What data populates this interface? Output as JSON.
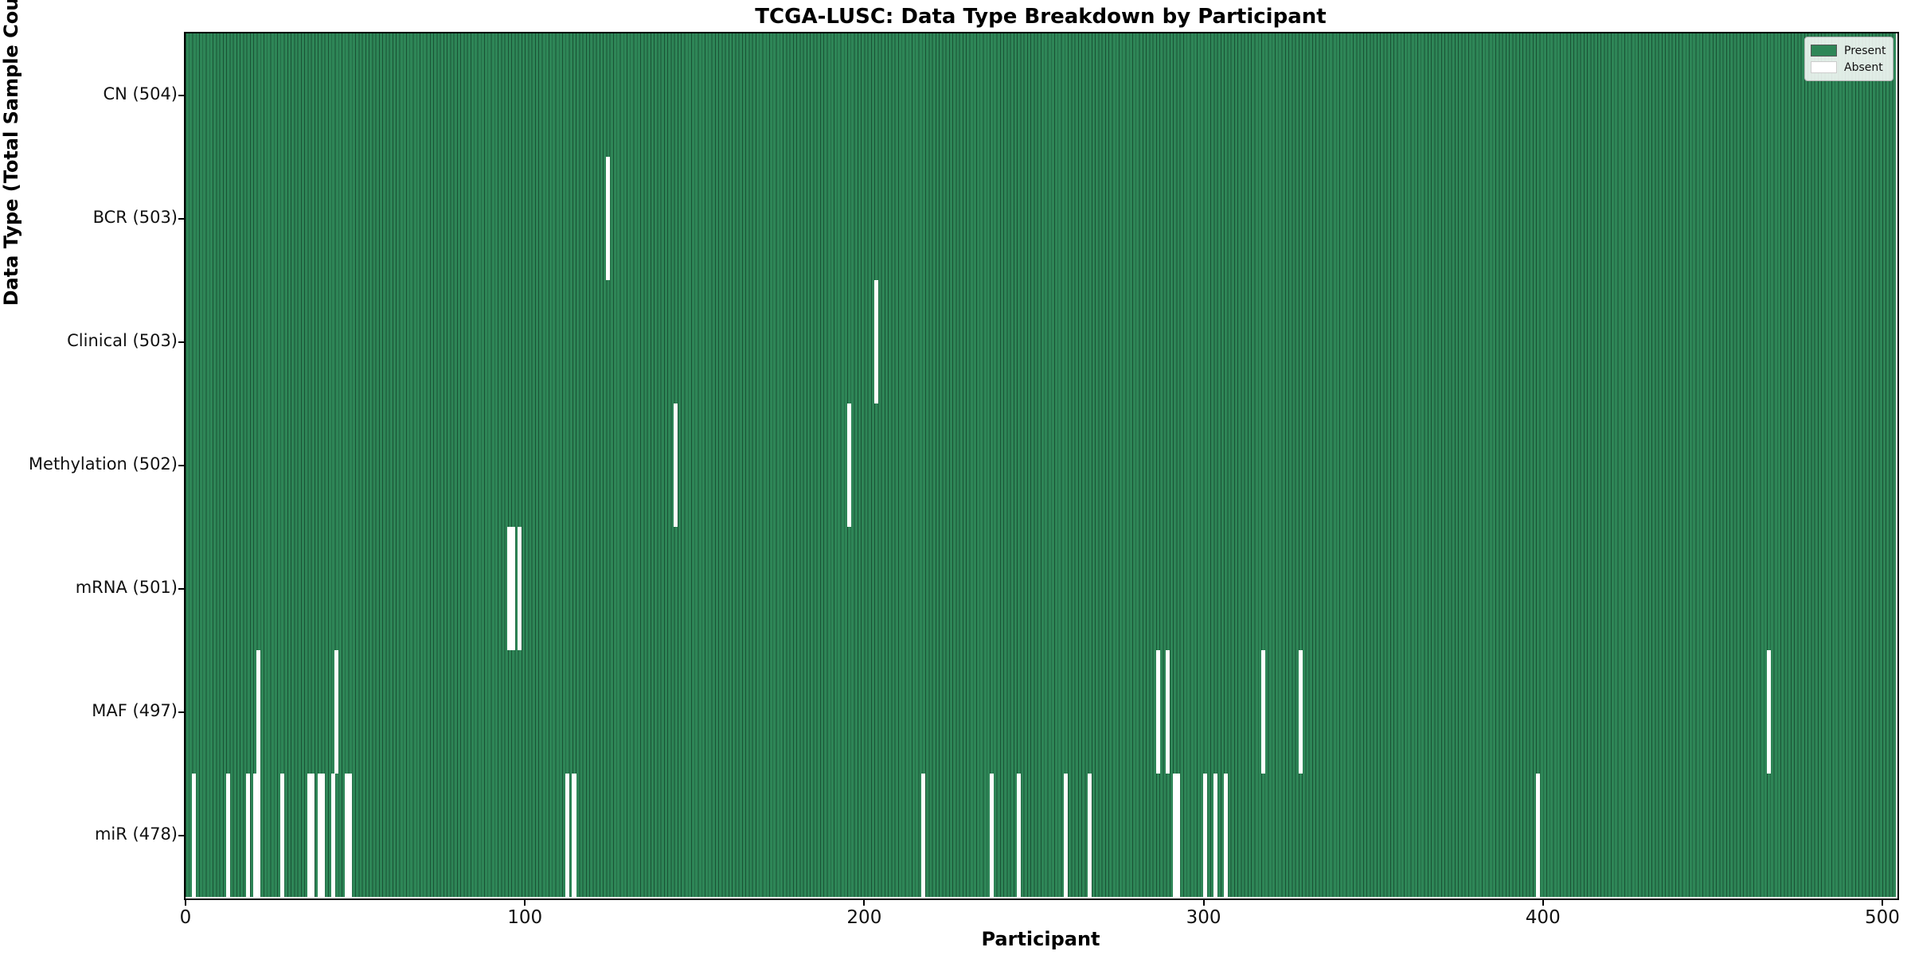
{
  "title": "TCGA-LUSC: Data Type Breakdown by Participant",
  "chart_data": {
    "type": "heatmap",
    "title": "TCGA-LUSC: Data Type Breakdown by Participant",
    "xlabel": "Participant",
    "ylabel": "Data Type (Total Sample Count)",
    "x_ticks": [
      0,
      100,
      200,
      300,
      400,
      500
    ],
    "xlim": [
      0,
      504
    ],
    "n_participants": 504,
    "grid": false,
    "legend_position": "upper right",
    "legend": {
      "entries": [
        {
          "label": "Present",
          "color": "#2e8657"
        },
        {
          "label": "Absent",
          "color": "#ffffff"
        }
      ]
    },
    "colors": {
      "present": "#2e8657",
      "absent": "#ffffff",
      "bar_edge": "rgba(8,38,24,0.55)",
      "swatch_border": "#555555"
    },
    "rows": [
      {
        "data_type": "CN",
        "label": "CN (504)",
        "total": 504,
        "absent_participants": []
      },
      {
        "data_type": "BCR",
        "label": "BCR (503)",
        "total": 503,
        "absent_participants": [
          124
        ]
      },
      {
        "data_type": "Clinical",
        "label": "Clinical (503)",
        "total": 503,
        "absent_participants": [
          203
        ]
      },
      {
        "data_type": "Methylation",
        "label": "Methylation (502)",
        "total": 502,
        "absent_participants": [
          144,
          195
        ]
      },
      {
        "data_type": "mRNA",
        "label": "mRNA (501)",
        "total": 501,
        "absent_participants": [
          95,
          96,
          98
        ]
      },
      {
        "data_type": "MAF",
        "label": "MAF (497)",
        "total": 497,
        "absent_participants": [
          21,
          44,
          286,
          289,
          317,
          328,
          466
        ]
      },
      {
        "data_type": "miR",
        "label": "miR (478)",
        "total": 478,
        "absent_participants": [
          2,
          12,
          18,
          20,
          21,
          28,
          36,
          37,
          39,
          40,
          43,
          47,
          48,
          112,
          114,
          217,
          237,
          245,
          259,
          266,
          291,
          292,
          300,
          303,
          306,
          398
        ]
      }
    ]
  }
}
